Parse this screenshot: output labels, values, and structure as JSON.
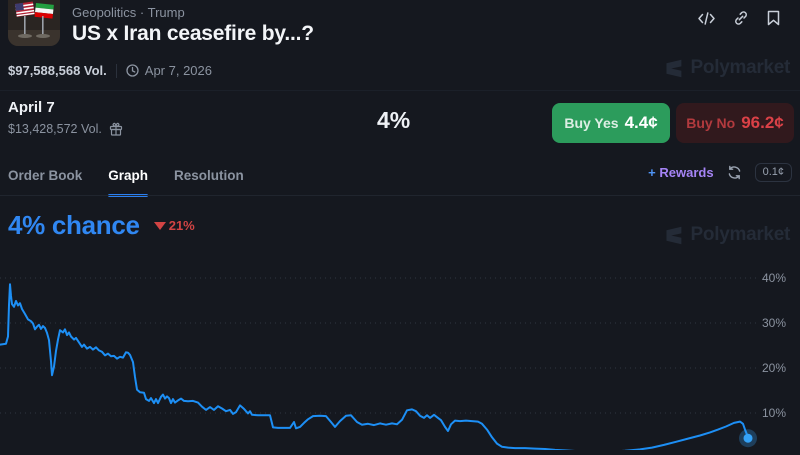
{
  "header": {
    "breadcrumb": "Geopolitics  ·  Trump",
    "title": "US x Iran ceasefire by...?",
    "volume": "$97,588,568 Vol.",
    "end_date": "Apr 7, 2026"
  },
  "watermark": {
    "label": "Polymarket"
  },
  "market_row": {
    "outcome": "April 7",
    "volume": "$13,428,572 Vol.",
    "chance": "4%",
    "buy_yes": {
      "label": "Buy Yes",
      "price": "4.4¢"
    },
    "buy_no": {
      "label": "Buy No",
      "price": "96.2¢"
    }
  },
  "tabs": {
    "items": [
      {
        "label": "Order Book",
        "active": false
      },
      {
        "label": "Graph",
        "active": true
      },
      {
        "label": "Resolution",
        "active": false
      }
    ],
    "right": {
      "plus": "+",
      "rewards": "Rewards",
      "fee": "0.1¢"
    }
  },
  "chance_header": {
    "value": "4% chance",
    "change": "21%",
    "change_direction": "down"
  },
  "colors": {
    "background": "#15181f",
    "accent_blue": "#3087f2",
    "line_blue": "#1d8ff5",
    "buy_yes_green": "#2c9c5c",
    "buy_no_red": "#da4147",
    "change_red": "#d24444",
    "rewards_purple": "#a584f5"
  },
  "chart_data": {
    "type": "line",
    "series_name": "April 7 — Yes price",
    "current_value_pct": 4.4,
    "ylim": [
      0,
      42
    ],
    "grid": "dotted-horizontal",
    "legend": "none",
    "line_color": "#1d8ff5",
    "dot_color": "#35a2f7",
    "yticks": [
      {
        "pct": 40,
        "label": "40%"
      },
      {
        "pct": 30,
        "label": "30%"
      },
      {
        "pct": 20,
        "label": "20%"
      },
      {
        "pct": 10,
        "label": "10%"
      }
    ],
    "points_format": "[x_px, probability_pct]",
    "points": [
      [
        0,
        25.2
      ],
      [
        6,
        25.4
      ],
      [
        8,
        27
      ],
      [
        9,
        34
      ],
      [
        10,
        38.6
      ],
      [
        11,
        36
      ],
      [
        12,
        34.2
      ],
      [
        14,
        33.6
      ],
      [
        16,
        34.9
      ],
      [
        18,
        33.9
      ],
      [
        20,
        34.4
      ],
      [
        22,
        33.1
      ],
      [
        25,
        32
      ],
      [
        28,
        30.8
      ],
      [
        31,
        30.4
      ],
      [
        33,
        29.9
      ],
      [
        35,
        28.6
      ],
      [
        37,
        29.2
      ],
      [
        39,
        29.6
      ],
      [
        41,
        28.7
      ],
      [
        43,
        29.3
      ],
      [
        45,
        28.9
      ],
      [
        47,
        27.8
      ],
      [
        49,
        26.2
      ],
      [
        51,
        21.5
      ],
      [
        52,
        18.4
      ],
      [
        54,
        20.3
      ],
      [
        56,
        23.8
      ],
      [
        58,
        26.3
      ],
      [
        60,
        28.4
      ],
      [
        63,
        27.9
      ],
      [
        65,
        28.6
      ],
      [
        67,
        27.3
      ],
      [
        69,
        27.9
      ],
      [
        71,
        27
      ],
      [
        74,
        26.3
      ],
      [
        76,
        26.7
      ],
      [
        79,
        25.7
      ],
      [
        82,
        24.7
      ],
      [
        84,
        25.2
      ],
      [
        87,
        24.3
      ],
      [
        90,
        24.7
      ],
      [
        93,
        24.1
      ],
      [
        96,
        24.6
      ],
      [
        99,
        23.9
      ],
      [
        102,
        23.6
      ],
      [
        105,
        22.8
      ],
      [
        108,
        23.2
      ],
      [
        111,
        22.6
      ],
      [
        114,
        22.7
      ],
      [
        117,
        22.1
      ],
      [
        120,
        22.5
      ],
      [
        123,
        22.3
      ],
      [
        126,
        23.5
      ],
      [
        128,
        23.4
      ],
      [
        130,
        22.9
      ],
      [
        133,
        21.3
      ],
      [
        135,
        18
      ],
      [
        137,
        15.2
      ],
      [
        140,
        14.6
      ],
      [
        144,
        14.5
      ],
      [
        146,
        13.1
      ],
      [
        149,
        12.7
      ],
      [
        151,
        13.3
      ],
      [
        154,
        12.2
      ],
      [
        156,
        13.1
      ],
      [
        158,
        12.2
      ],
      [
        161,
        13.6
      ],
      [
        163,
        14.1
      ],
      [
        165,
        13.2
      ],
      [
        167,
        13.7
      ],
      [
        169,
        13.3
      ],
      [
        171,
        12.2
      ],
      [
        173,
        13.1
      ],
      [
        175,
        12.3
      ],
      [
        178,
        12.8
      ],
      [
        181,
        13.2
      ],
      [
        184,
        12.7
      ],
      [
        188,
        12.6
      ],
      [
        193,
        12.7
      ],
      [
        198,
        12.3
      ],
      [
        202,
        11.4
      ],
      [
        206,
        10.7
      ],
      [
        210,
        11.3
      ],
      [
        214,
        10.7
      ],
      [
        218,
        11.5
      ],
      [
        222,
        11
      ],
      [
        226,
        10.4
      ],
      [
        230,
        10.7
      ],
      [
        233,
        9.8
      ],
      [
        236,
        10.2
      ],
      [
        240,
        11.7
      ],
      [
        244,
        10.9
      ],
      [
        248,
        9.9
      ],
      [
        250,
        10.4
      ],
      [
        252,
        9.6
      ],
      [
        258,
        9.5
      ],
      [
        264,
        9.5
      ],
      [
        270,
        9.5
      ],
      [
        273,
        6.8
      ],
      [
        278,
        6.7
      ],
      [
        284,
        6.7
      ],
      [
        290,
        6.7
      ],
      [
        294,
        8
      ],
      [
        296,
        6.6
      ],
      [
        300,
        6.9
      ],
      [
        304,
        7.8
      ],
      [
        308,
        8.6
      ],
      [
        313,
        9.3
      ],
      [
        320,
        9.4
      ],
      [
        326,
        9.3
      ],
      [
        331,
        8
      ],
      [
        335,
        6.9
      ],
      [
        340,
        8.2
      ],
      [
        346,
        9.4
      ],
      [
        351,
        9.5
      ],
      [
        357,
        8
      ],
      [
        362,
        7.4
      ],
      [
        368,
        7.6
      ],
      [
        374,
        7.3
      ],
      [
        380,
        7.7
      ],
      [
        386,
        7.4
      ],
      [
        392,
        7.7
      ],
      [
        397,
        7.5
      ],
      [
        402,
        8.5
      ],
      [
        407,
        10.6
      ],
      [
        412,
        10.8
      ],
      [
        416,
        10.4
      ],
      [
        420,
        9.4
      ],
      [
        424,
        8.9
      ],
      [
        427,
        9.5
      ],
      [
        430,
        8.9
      ],
      [
        434,
        9.6
      ],
      [
        438,
        8.9
      ],
      [
        441,
        8.4
      ],
      [
        445,
        6.9
      ],
      [
        448,
        6
      ],
      [
        451,
        7.5
      ],
      [
        455,
        8.3
      ],
      [
        460,
        8.2
      ],
      [
        466,
        8.3
      ],
      [
        472,
        8.2
      ],
      [
        478,
        8.1
      ],
      [
        482,
        7.6
      ],
      [
        487,
        6.3
      ],
      [
        492,
        4.6
      ],
      [
        497,
        3.2
      ],
      [
        502,
        2.5
      ],
      [
        508,
        2.3
      ],
      [
        515,
        2.2
      ],
      [
        525,
        2.2
      ],
      [
        535,
        2.1
      ],
      [
        545,
        2
      ],
      [
        555,
        1.8
      ],
      [
        565,
        1.7
      ],
      [
        580,
        1.5
      ],
      [
        595,
        1.4
      ],
      [
        610,
        1.4
      ],
      [
        625,
        1.6
      ],
      [
        640,
        1.9
      ],
      [
        652,
        2.3
      ],
      [
        664,
        2.9
      ],
      [
        676,
        3.6
      ],
      [
        688,
        4.3
      ],
      [
        700,
        5
      ],
      [
        710,
        5.7
      ],
      [
        718,
        6.3
      ],
      [
        726,
        7
      ],
      [
        734,
        7.8
      ],
      [
        740,
        8.1
      ],
      [
        743,
        7.6
      ],
      [
        745,
        6.3
      ],
      [
        747,
        5.2
      ],
      [
        748,
        4.4
      ]
    ]
  }
}
